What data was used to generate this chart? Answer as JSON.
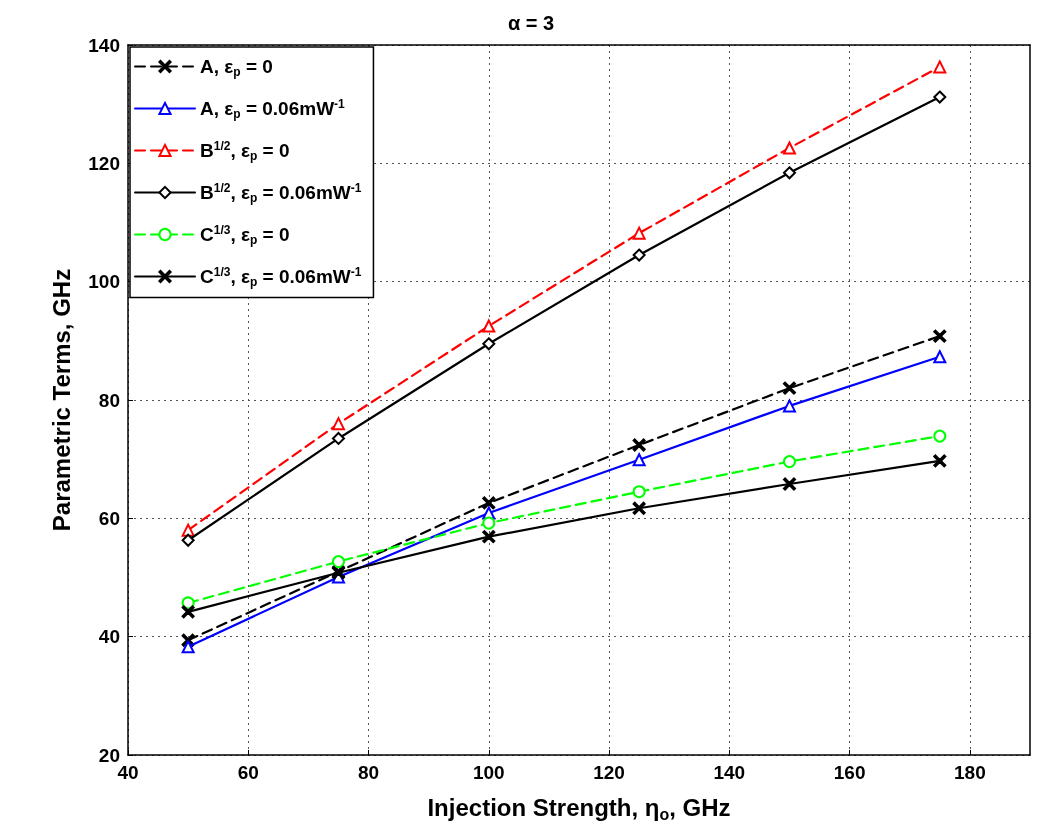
{
  "chart_data": {
    "type": "line",
    "title": "α = 3",
    "xlabel": "Injection Strength, η$_{o}$, GHz",
    "ylabel": "Parametric Terms, GHz",
    "x": [
      50,
      75,
      100,
      125,
      150,
      175
    ],
    "series": [
      {
        "name": "A, ε$_{p}$ = 0",
        "color": "#000000",
        "marker": "cross",
        "line_style": "dashed",
        "values": [
          39.4,
          51,
          62.6,
          72.4,
          82,
          90.8
        ]
      },
      {
        "name": "A, ε$_{p}$ = 0.06mW$^{-1}$",
        "color": "#0000ff",
        "marker": "triangle",
        "line_style": "solid",
        "values": [
          38.3,
          50.1,
          60.9,
          69.9,
          79,
          87.3
        ]
      },
      {
        "name": "B$^{1/2}$, ε$_{p}$ = 0",
        "color": "#ff0000",
        "marker": "triangle",
        "line_style": "dashed",
        "values": [
          58,
          76,
          92.5,
          108.2,
          122.6,
          136.3
        ]
      },
      {
        "name": "B$^{1/2}$, ε$_{p}$ = 0.06mW$^{-1}$",
        "color": "#000000",
        "marker": "diamond",
        "line_style": "solid",
        "values": [
          56.3,
          73.5,
          89.5,
          104.5,
          118.4,
          131.2
        ]
      },
      {
        "name": "C$^{1/3}$, ε$_{p}$ = 0",
        "color": "#00ff00",
        "marker": "circle",
        "line_style": "dashed",
        "values": [
          45.7,
          52.7,
          59.2,
          64.5,
          69.6,
          73.9
        ]
      },
      {
        "name": "C$^{1/3}$, ε$_{p}$ = 0.06mW$^{-1}$",
        "color": "#000000",
        "marker": "cross",
        "line_style": "solid",
        "values": [
          44.2,
          50.8,
          56.9,
          61.7,
          65.8,
          69.7
        ]
      }
    ],
    "xlim": [
      40,
      190
    ],
    "xticks": [
      40,
      60,
      80,
      100,
      120,
      140,
      160,
      180
    ],
    "ylim": [
      20,
      140
    ],
    "yticks": [
      20,
      40,
      60,
      80,
      100,
      120,
      140
    ],
    "grid": true,
    "legend": "top left"
  }
}
